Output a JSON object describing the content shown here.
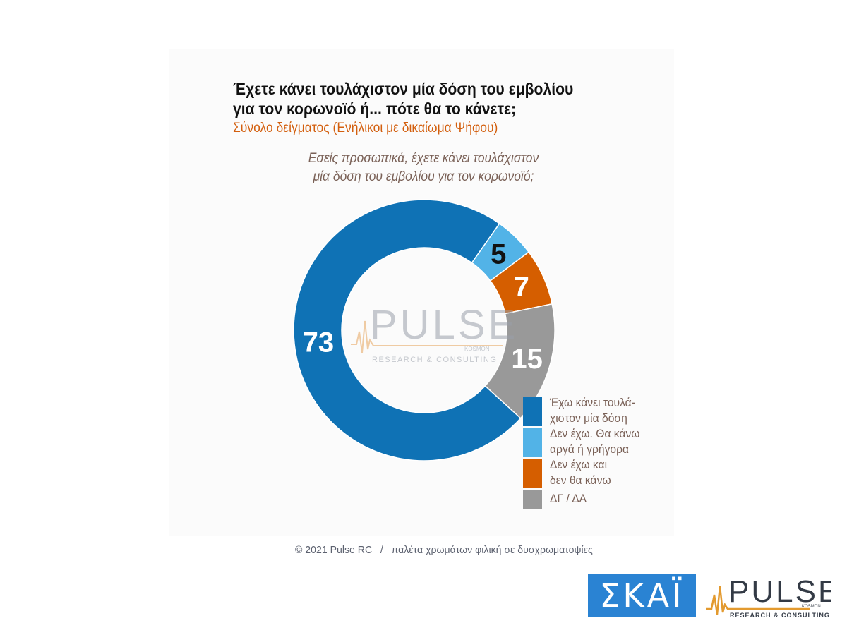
{
  "chart_data": {
    "type": "pie",
    "style": "donut",
    "title": "Έχετε κάνει τουλάχιστον μία δόση του εμβολίου για τον κορωνοϊό ή... πότε θα το κάνετε;",
    "subtitle": "Σύνολο δείγματος (Ενήλικοι με δικαίωμα Ψήφου)",
    "question": "Εσείς προσωπικά, έχετε κάνει τουλάχιστον μία δόση του εμβολίου για τον κορωνοϊό;",
    "categories": [
      "Έχω κάνει τουλά-χιστον μία δόση",
      "Δεν έχω. Θα κάνω αργά ή γρήγορα",
      "Δεν έχω και δεν θα κάνω",
      "ΔΓ / ΔΑ"
    ],
    "values": [
      73,
      5,
      7,
      15
    ],
    "colors": [
      "#0f72b5",
      "#52b3e7",
      "#d55e00",
      "#999999"
    ],
    "label_colors": [
      "#ffffff",
      "#111111",
      "#ffffff",
      "#ffffff"
    ],
    "legend_position": "right"
  },
  "header": {
    "title_lines": [
      "Έχετε κάνει τουλάχιστον μία δόση του εμβολίου",
      "για τον κορωνοϊό ή... πότε θα το κάνετε;"
    ],
    "subtitle": "Σύνολο δείγματος (Ενήλικοι με δικαίωμα Ψήφου)",
    "question_lines": [
      "Εσείς προσωπικά, έχετε κάνει τουλάχιστον",
      "μία δόση του εμβολίου για τον κορωνοϊό;"
    ]
  },
  "legend": {
    "items": [
      {
        "line1": "Έχω κάνει τουλά-",
        "line2": "χιστον μία δόση"
      },
      {
        "line1": "Δεν έχω. Θα κάνω",
        "line2": "αργά ή γρήγορα"
      },
      {
        "line1": "Δεν έχω και",
        "line2": "δεν θα κάνω"
      },
      {
        "line1": "ΔΓ / ΔΑ",
        "line2": ""
      }
    ]
  },
  "watermark": {
    "brand": "PULSE",
    "tagline": "RESEARCH & CONSULTING",
    "small": "KOSMON"
  },
  "footer": {
    "copyright": "© 2021 Pulse RC",
    "separator": "/",
    "note": "παλέτα χρωμάτων φιλική σε δυσχρωματοψίες"
  },
  "logos": {
    "skai": "ΣΚΑΪ",
    "pulse": "PULSE",
    "pulse_tagline": "RESEARCH & CONSULTING",
    "pulse_small": "KOSMON"
  }
}
